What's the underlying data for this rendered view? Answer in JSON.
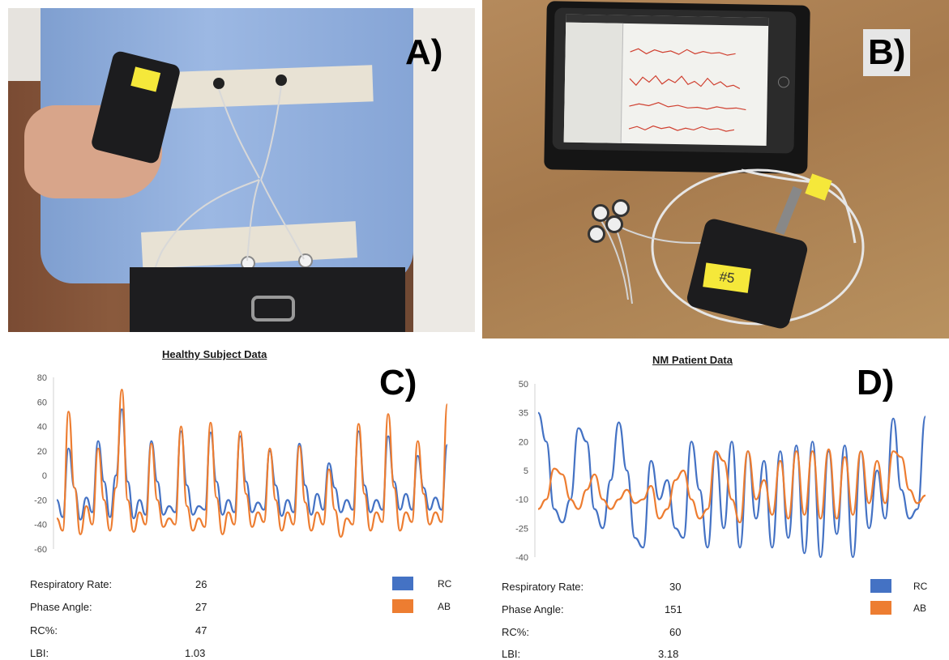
{
  "panels": {
    "a": {
      "letter": "A)"
    },
    "b": {
      "letter": "B)",
      "tag": "#5"
    },
    "c": {
      "letter": "C)"
    },
    "d": {
      "letter": "D)"
    }
  },
  "colors": {
    "rc": "#4472c4",
    "ab": "#ed7d31"
  },
  "chart_data": [
    {
      "type": "line",
      "title": "Healthy Subject Data",
      "ylim": [
        -60,
        80
      ],
      "yticks": [
        80,
        60,
        40,
        20,
        0,
        -20,
        -40,
        -60
      ],
      "grid": false,
      "series": [
        {
          "name": "RC",
          "color": "#4472c4",
          "values": [
            -20,
            -34,
            22,
            -10,
            -36,
            -18,
            -30,
            28,
            -5,
            -34,
            0,
            54,
            -5,
            -35,
            -20,
            -32,
            28,
            -5,
            -32,
            -25,
            -30,
            36,
            -8,
            -32,
            -25,
            -28,
            35,
            -5,
            -32,
            -20,
            -30,
            32,
            -5,
            -30,
            -22,
            -28,
            20,
            -8,
            -33,
            -20,
            -30,
            26,
            -8,
            -32,
            -15,
            -28,
            10,
            -10,
            -30,
            -20,
            -28,
            36,
            -8,
            -30,
            -20,
            -28,
            32,
            -5,
            -28,
            -15,
            -28,
            16,
            -10,
            -28,
            -18,
            -28,
            25
          ]
        },
        {
          "name": "AB",
          "color": "#ed7d31",
          "values": [
            -35,
            -45,
            52,
            -10,
            -48,
            -25,
            -40,
            22,
            -20,
            -45,
            -10,
            70,
            -20,
            -46,
            -30,
            -40,
            26,
            -20,
            -42,
            -35,
            -40,
            40,
            -25,
            -45,
            -35,
            -42,
            43,
            -18,
            -48,
            -30,
            -40,
            36,
            -15,
            -42,
            -30,
            -38,
            22,
            -20,
            -45,
            -30,
            -40,
            24,
            -22,
            -45,
            -30,
            -40,
            5,
            -28,
            -50,
            -35,
            -40,
            42,
            -15,
            -45,
            -30,
            -38,
            50,
            -10,
            -45,
            -30,
            -38,
            28,
            -15,
            -40,
            -30,
            -38,
            58
          ]
        }
      ],
      "stats": [
        {
          "label": "Respiratory Rate:",
          "value": "26"
        },
        {
          "label": "Phase Angle:",
          "value": "27"
        },
        {
          "label": "RC%:",
          "value": "47"
        },
        {
          "label": "LBI:",
          "value": "1.03"
        }
      ],
      "legend": [
        "RC",
        "AB"
      ]
    },
    {
      "type": "line",
      "title": "NM Patient Data",
      "ylim": [
        -40,
        50
      ],
      "yticks": [
        50,
        35,
        20,
        5,
        -10,
        -25,
        -40
      ],
      "grid": false,
      "series": [
        {
          "name": "RC",
          "color": "#4472c4",
          "values": [
            35,
            20,
            -15,
            -22,
            -10,
            27,
            20,
            -15,
            -25,
            0,
            30,
            5,
            -30,
            -35,
            10,
            -10,
            0,
            -25,
            -30,
            20,
            -5,
            -35,
            15,
            -25,
            20,
            -35,
            15,
            -20,
            10,
            -35,
            15,
            -30,
            18,
            -38,
            20,
            -40,
            15,
            -28,
            18,
            -40,
            15,
            -25,
            5,
            -20,
            32,
            -5,
            -20,
            -15,
            33
          ]
        },
        {
          "name": "AB",
          "color": "#ed7d31",
          "values": [
            -15,
            -10,
            6,
            3,
            -10,
            -15,
            -5,
            3,
            -10,
            -15,
            -10,
            -5,
            -12,
            -10,
            -3,
            -20,
            -15,
            0,
            5,
            -10,
            -20,
            -15,
            15,
            10,
            -10,
            -22,
            15,
            -10,
            0,
            -18,
            10,
            -20,
            15,
            -18,
            15,
            -20,
            16,
            -20,
            12,
            -18,
            15,
            -12,
            10,
            -12,
            15,
            12,
            -5,
            -12,
            -8
          ]
        }
      ],
      "stats": [
        {
          "label": "Respiratory Rate:",
          "value": "30"
        },
        {
          "label": "Phase Angle:",
          "value": "151"
        },
        {
          "label": "RC%:",
          "value": "60"
        },
        {
          "label": "LBI:",
          "value": "3.18"
        }
      ],
      "legend": [
        "RC",
        "AB"
      ]
    }
  ]
}
